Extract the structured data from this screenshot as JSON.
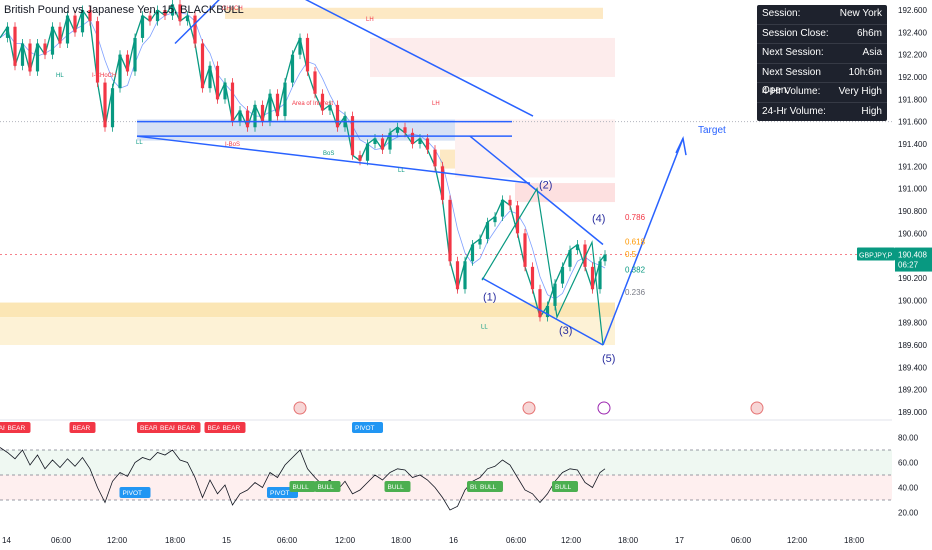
{
  "header": {
    "title": "British Pound vs Japanese Yen, 15, BLACKBULL"
  },
  "session_table": [
    {
      "label": "Session:",
      "value": "New York"
    },
    {
      "label": "Session Close:",
      "value": "6h6m"
    },
    {
      "label": "Next Session:",
      "value": "Asia"
    },
    {
      "label": "Next Session Open:",
      "value": "10h:6m"
    },
    {
      "label": "4-Hr Volume:",
      "value": "Very High"
    },
    {
      "label": "24-Hr Volume:",
      "value": "High"
    }
  ],
  "price_label": {
    "symbol": "GBPJPY,P",
    "price": "190.408",
    "countdown": "06:27"
  },
  "annotations": {
    "target": "Target",
    "waves": [
      "(1)",
      "(2)",
      "(3)",
      "(4)",
      "(5)"
    ],
    "fib_levels": [
      "0.786",
      "0.618",
      "0.5",
      "0.382",
      "0.236"
    ],
    "structure_labels": [
      "LH",
      "LH",
      "HL",
      "LL",
      "LL",
      "LL",
      "BoS",
      "I-CHoCH",
      "CHoCH",
      "I-BoS",
      "Area of Interest"
    ]
  },
  "chart_data": [
    {
      "type": "candlestick",
      "title": "British Pound vs Japanese Yen, 15, BLACKBULL",
      "x_ticks": [
        "14",
        "06:00",
        "12:00",
        "18:00",
        "15",
        "06:00",
        "12:00",
        "18:00",
        "16",
        "06:00",
        "12:00",
        "18:00",
        "17",
        "06:00",
        "12:00",
        "18:00"
      ],
      "y_ticks": [
        192.6,
        192.4,
        192.2,
        192.0,
        191.8,
        191.6,
        191.4,
        191.2,
        191.0,
        190.8,
        190.6,
        190.4,
        190.2,
        190.0,
        189.8,
        189.6,
        189.4,
        189.2,
        189.0
      ],
      "ylim": [
        189.0,
        192.7
      ],
      "last_price": 190.408,
      "price_path": [
        [
          0,
          192.35
        ],
        [
          3,
          192.45
        ],
        [
          6,
          192.1
        ],
        [
          9,
          192.3
        ],
        [
          12,
          192.05
        ],
        [
          15,
          192.3
        ],
        [
          18,
          192.2
        ],
        [
          21,
          192.45
        ],
        [
          24,
          192.3
        ],
        [
          27,
          192.55
        ],
        [
          30,
          192.4
        ],
        [
          33,
          192.6
        ],
        [
          36,
          192.5
        ],
        [
          39,
          191.95
        ],
        [
          42,
          191.55
        ],
        [
          45,
          191.9
        ],
        [
          48,
          192.2
        ],
        [
          51,
          192.05
        ],
        [
          54,
          192.35
        ],
        [
          57,
          192.55
        ],
        [
          60,
          192.5
        ],
        [
          63,
          192.6
        ],
        [
          66,
          192.55
        ],
        [
          69,
          192.65
        ],
        [
          72,
          192.5
        ],
        [
          75,
          192.55
        ],
        [
          78,
          192.3
        ],
        [
          81,
          191.9
        ],
        [
          84,
          192.1
        ],
        [
          87,
          191.8
        ],
        [
          90,
          191.95
        ],
        [
          93,
          191.6
        ],
        [
          96,
          191.7
        ],
        [
          99,
          191.55
        ],
        [
          102,
          191.75
        ],
        [
          105,
          191.6
        ],
        [
          108,
          191.85
        ],
        [
          111,
          191.65
        ],
        [
          114,
          191.95
        ],
        [
          117,
          192.2
        ],
        [
          120,
          192.35
        ],
        [
          123,
          192.05
        ],
        [
          126,
          191.85
        ],
        [
          129,
          191.7
        ],
        [
          132,
          191.75
        ],
        [
          135,
          191.55
        ],
        [
          138,
          191.65
        ],
        [
          141,
          191.3
        ],
        [
          144,
          191.25
        ],
        [
          147,
          191.4
        ],
        [
          150,
          191.45
        ],
        [
          153,
          191.35
        ],
        [
          156,
          191.5
        ],
        [
          159,
          191.55
        ],
        [
          162,
          191.5
        ],
        [
          165,
          191.4
        ],
        [
          168,
          191.45
        ],
        [
          171,
          191.35
        ],
        [
          174,
          191.2
        ],
        [
          177,
          190.9
        ],
        [
          180,
          190.35
        ],
        [
          183,
          190.1
        ],
        [
          186,
          190.35
        ],
        [
          189,
          190.5
        ],
        [
          192,
          190.55
        ],
        [
          195,
          190.7
        ],
        [
          198,
          190.75
        ],
        [
          201,
          190.9
        ],
        [
          204,
          190.85
        ],
        [
          207,
          190.6
        ],
        [
          210,
          190.3
        ],
        [
          213,
          190.1
        ],
        [
          216,
          189.85
        ],
        [
          219,
          189.95
        ],
        [
          222,
          190.15
        ],
        [
          225,
          190.3
        ],
        [
          228,
          190.45
        ],
        [
          231,
          190.5
        ],
        [
          234,
          190.3
        ],
        [
          237,
          190.1
        ],
        [
          240,
          190.35
        ],
        [
          242,
          190.41
        ]
      ],
      "projection": {
        "from": [
          242,
          190.41
        ],
        "low": [
          246,
          189.6
        ],
        "target": [
          280,
          191.45
        ],
        "label": "Target"
      },
      "waves": [
        {
          "label": "(1)",
          "x": 182,
          "y": 190.15
        },
        {
          "label": "(2)",
          "x": 202,
          "y": 191.0
        },
        {
          "label": "(3)",
          "x": 216,
          "y": 189.85
        },
        {
          "label": "(4)",
          "x": 234,
          "y": 190.55
        },
        {
          "label": "(5)",
          "x": 246,
          "y": 189.6
        }
      ],
      "fibonacci": [
        {
          "level": "0.786",
          "price": 190.72
        },
        {
          "level": "0.618",
          "price": 190.5
        },
        {
          "level": "0.5",
          "price": 190.39
        },
        {
          "level": "0.382",
          "price": 190.25
        },
        {
          "level": "0.236",
          "price": 190.05
        }
      ]
    },
    {
      "type": "line",
      "title": "",
      "y_ticks": [
        80.0,
        60.0,
        40.0,
        20.0
      ],
      "ylim": [
        10,
        90
      ],
      "levels": [
        70,
        50,
        30
      ],
      "x": [
        0,
        3,
        6,
        9,
        12,
        15,
        18,
        21,
        24,
        27,
        30,
        33,
        36,
        39,
        42,
        45,
        48,
        51,
        54,
        57,
        60,
        63,
        66,
        69,
        72,
        75,
        78,
        81,
        84,
        87,
        90,
        93,
        96,
        99,
        102,
        105,
        108,
        111,
        114,
        117,
        120,
        123,
        126,
        129,
        132,
        135,
        138,
        141,
        144,
        147,
        150,
        153,
        156,
        159,
        162,
        165,
        168,
        171,
        174,
        177,
        180,
        183,
        186,
        189,
        192,
        195,
        198,
        201,
        204,
        207,
        210,
        213,
        216,
        219,
        222,
        225,
        228,
        231,
        234,
        237,
        240,
        242
      ],
      "values": [
        72,
        68,
        63,
        70,
        58,
        66,
        55,
        62,
        56,
        63,
        57,
        64,
        55,
        40,
        28,
        45,
        52,
        49,
        60,
        64,
        62,
        68,
        66,
        70,
        62,
        60,
        48,
        32,
        46,
        35,
        42,
        26,
        35,
        38,
        44,
        40,
        52,
        48,
        58,
        64,
        70,
        55,
        48,
        42,
        46,
        38,
        45,
        35,
        38,
        44,
        50,
        46,
        52,
        55,
        54,
        48,
        50,
        46,
        40,
        32,
        22,
        25,
        38,
        45,
        48,
        55,
        57,
        62,
        58,
        48,
        38,
        35,
        28,
        35,
        45,
        52,
        55,
        54,
        44,
        40,
        52,
        55
      ],
      "signals": [
        {
          "label": "BEAR",
          "x": 0,
          "type": "bear"
        },
        {
          "label": "BEAR",
          "x": 7,
          "type": "bear"
        },
        {
          "label": "BEAR",
          "x": 33,
          "type": "bear"
        },
        {
          "label": "BEAR",
          "x": 60,
          "type": "bear"
        },
        {
          "label": "BEAR",
          "x": 68,
          "type": "bear"
        },
        {
          "label": "BEAR",
          "x": 75,
          "type": "bear"
        },
        {
          "label": "BEAR",
          "x": 87,
          "type": "bear"
        },
        {
          "label": "BEAR",
          "x": 93,
          "type": "bear"
        },
        {
          "label": "PIVOT",
          "x": 54,
          "type": "pivot-low"
        },
        {
          "label": "PIVOT",
          "x": 113,
          "type": "pivot-low"
        },
        {
          "label": "PIVOT",
          "x": 147,
          "type": "pivot-high"
        },
        {
          "label": "BULL",
          "x": 121,
          "type": "bull"
        },
        {
          "label": "BULL",
          "x": 131,
          "type": "bull"
        },
        {
          "label": "BULL",
          "x": 159,
          "type": "bull"
        },
        {
          "label": "BULL",
          "x": 192,
          "type": "bull"
        },
        {
          "label": "BULL",
          "x": 196,
          "type": "bull"
        },
        {
          "label": "BULL",
          "x": 226,
          "type": "bull"
        }
      ]
    }
  ]
}
